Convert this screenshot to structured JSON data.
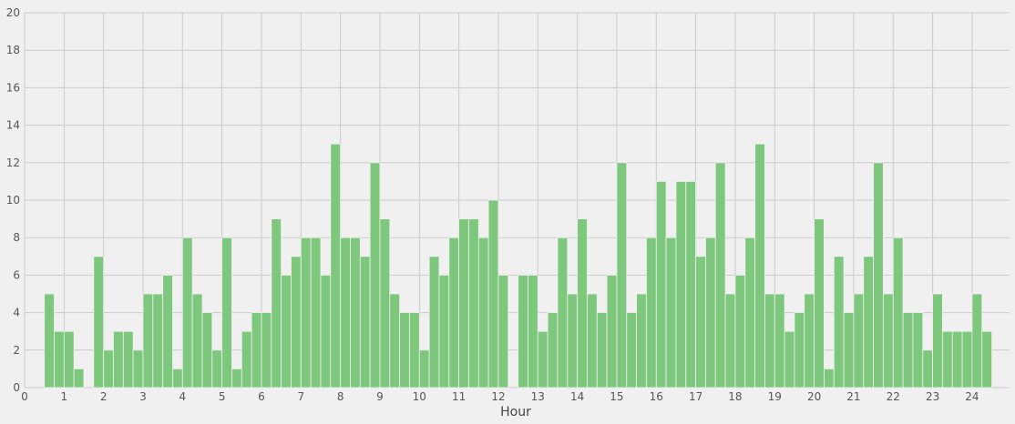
{
  "chart_data": {
    "type": "bar",
    "title": "",
    "xlabel": "Hour",
    "ylabel": "",
    "xlim": [
      0,
      24.5
    ],
    "ylim": [
      0,
      20
    ],
    "x_ticks": [
      "0",
      "1",
      "2",
      "3",
      "4",
      "5",
      "6",
      "7",
      "8",
      "9",
      "10",
      "11",
      "12",
      "13",
      "14",
      "15",
      "16",
      "17",
      "18",
      "19",
      "20",
      "21",
      "22",
      "23",
      "24"
    ],
    "y_ticks": [
      "0",
      "2",
      "4",
      "6",
      "8",
      "10",
      "12",
      "14",
      "16",
      "18",
      "20"
    ],
    "grid": true,
    "bar_color": "#7dc87d",
    "bin_width": 0.25,
    "bin_start": 0.5,
    "values": [
      5,
      3,
      3,
      1,
      0,
      7,
      2,
      3,
      3,
      2,
      5,
      5,
      6,
      1,
      8,
      5,
      4,
      2,
      8,
      1,
      3,
      4,
      4,
      9,
      6,
      7,
      8,
      8,
      6,
      13,
      8,
      8,
      7,
      12,
      9,
      5,
      4,
      4,
      2,
      7,
      6,
      8,
      9,
      9,
      8,
      10,
      6,
      0,
      6,
      6,
      3,
      4,
      8,
      5,
      9,
      5,
      4,
      6,
      12,
      4,
      5,
      8,
      11,
      8,
      11,
      11,
      7,
      8,
      12,
      5,
      6,
      8,
      13,
      5,
      5,
      3,
      4,
      5,
      9,
      1,
      7,
      4,
      5,
      7,
      12,
      5,
      8,
      4,
      4,
      2,
      5,
      3,
      3,
      3,
      5,
      3
    ]
  }
}
